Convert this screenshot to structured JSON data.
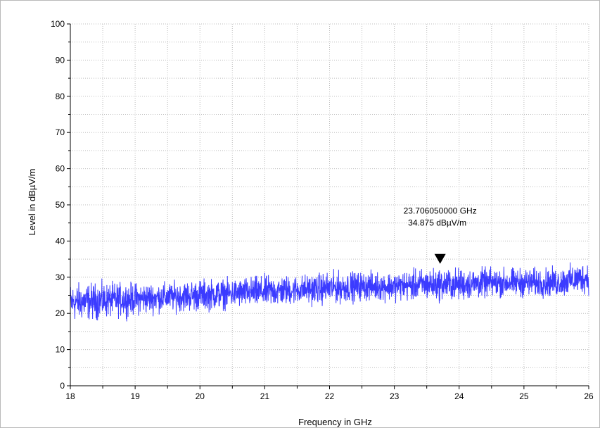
{
  "chart_data": {
    "type": "line",
    "xlabel": "Frequency in GHz",
    "ylabel": "Level in dBµV/m",
    "xlim": [
      18,
      26
    ],
    "ylim": [
      0,
      100
    ],
    "x_ticks": [
      18,
      19,
      20,
      21,
      22,
      23,
      24,
      25,
      26
    ],
    "y_ticks": [
      0,
      10,
      20,
      30,
      40,
      50,
      60,
      70,
      80,
      90,
      100
    ],
    "grid": true,
    "series": [
      {
        "color": "#3b3bff",
        "trend_x": [
          18,
          18.5,
          19,
          19.5,
          20,
          20.5,
          21,
          21.5,
          22,
          22.5,
          23,
          23.5,
          24,
          24.5,
          25,
          25.5,
          26
        ],
        "trend_min": [
          17,
          18,
          19,
          20,
          20,
          21,
          21,
          22,
          22,
          23,
          23,
          23,
          23,
          24,
          24,
          24,
          25
        ],
        "trend_max": [
          29,
          29,
          29,
          29,
          30,
          30,
          31,
          31,
          32,
          32,
          32,
          33,
          33,
          33,
          33,
          33,
          35
        ]
      }
    ],
    "marker": {
      "x": 23.70605,
      "y": 34.875,
      "freq_label": "23.706050000 GHz",
      "level_label": "34.875 dBµV/m"
    }
  }
}
